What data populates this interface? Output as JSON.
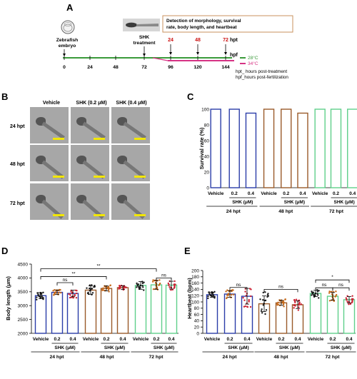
{
  "panelA": {
    "letter": "A",
    "embryo_label_1": "Zebrafish",
    "embryo_label_2": "embryo",
    "treatment_label_1": "SHK",
    "treatment_label_2": "treatment",
    "detection_box": "Detection of morphology, survival rate, body length, and heartbeat",
    "hpt_ticks": [
      "24",
      "48",
      "72"
    ],
    "hpt_unit": "hpt",
    "hpf_ticks": [
      "0",
      "24",
      "48",
      "72",
      "96",
      "120",
      "144"
    ],
    "hpf_unit": "hpf",
    "temp_green": "28°C",
    "temp_pink": "34°C",
    "note_hpt": "hpt_ hours post-treatment",
    "note_hpf": "hpf_hours post-fertilization",
    "colors": {
      "green_line": "#3a9a3a",
      "pink_line": "#d63384",
      "red_text": "#cc1111",
      "box": "#c8925c"
    }
  },
  "panelB": {
    "letter": "B",
    "columns": [
      "Vehicle",
      "SHK (0.2 μM)",
      "SHK (0.4 μM)"
    ],
    "rows": [
      "24 hpt",
      "48 hpt",
      "72 hpt"
    ]
  },
  "panelC": {
    "letter": "C",
    "groups": [
      "24 hpt",
      "48 hpt",
      "72 hpt"
    ],
    "conditions": [
      "Vehicle",
      "0.2",
      "0.4"
    ],
    "shk_label": "SHK (μM)",
    "colors": [
      "#2b3da8",
      "#9a5a2a",
      "#5fcf8a"
    ]
  },
  "panelD": {
    "letter": "D",
    "groups": [
      "24 hpt",
      "48 hpt",
      "72 hpt"
    ],
    "conditions": [
      "Vehicle",
      "0.2",
      "0.4"
    ],
    "shk_label": "SHK (μM)",
    "colors": [
      "#2b3da8",
      "#9a5a2a",
      "#5fcf8a"
    ],
    "sig_labels": [
      "ns",
      "**",
      "**",
      "ns"
    ]
  },
  "panelE": {
    "letter": "E",
    "groups": [
      "24 hpt",
      "48 hpt",
      "72 hpt"
    ],
    "conditions": [
      "Vehicle",
      "0.2",
      "0.4"
    ],
    "shk_label": "SHK (μM)",
    "colors": [
      "#2b3da8",
      "#9a5a2a",
      "#5fcf8a"
    ],
    "sig_labels": [
      "ns",
      "ns",
      "ns",
      "ns",
      "*"
    ]
  },
  "chart_data": [
    {
      "type": "bar",
      "title": "",
      "xlabel": "",
      "ylabel": "Survival rate (%)",
      "ylim": [
        0,
        100
      ],
      "yticks": [
        0,
        20,
        40,
        60,
        80,
        100
      ],
      "categories": [
        "Vehicle",
        "0.2",
        "0.4",
        "Vehicle",
        "0.2",
        "0.4",
        "Vehicle",
        "0.2",
        "0.4"
      ],
      "groups": [
        "24 hpt",
        "48 hpt",
        "72 hpt"
      ],
      "values": [
        100,
        100,
        95,
        100,
        100,
        95,
        100,
        100,
        100
      ]
    },
    {
      "type": "bar",
      "title": "",
      "xlabel": "",
      "ylabel": "Body length (μm)",
      "ylim": [
        2000,
        4500
      ],
      "yticks": [
        2000,
        2500,
        3000,
        3500,
        4000,
        4500
      ],
      "categories": [
        "Vehicle",
        "0.2",
        "0.4",
        "Vehicle",
        "0.2",
        "0.4",
        "Vehicle",
        "0.2",
        "0.4"
      ],
      "groups": [
        "24 hpt",
        "48 hpt",
        "72 hpt"
      ],
      "values": [
        3360,
        3480,
        3440,
        3560,
        3620,
        3650,
        3730,
        3750,
        3740
      ],
      "errors": [
        110,
        80,
        120,
        150,
        90,
        70,
        140,
        160,
        140
      ]
    },
    {
      "type": "bar",
      "title": "",
      "xlabel": "",
      "ylabel": "Heartbeat (bpm)",
      "ylim": [
        0,
        200
      ],
      "yticks": [
        0,
        20,
        40,
        60,
        80,
        100,
        120,
        140,
        160,
        180,
        200
      ],
      "categories": [
        "Vehicle",
        "0.2",
        "0.4",
        "Vehicle",
        "0.2",
        "0.4",
        "Vehicle",
        "0.2",
        "0.4"
      ],
      "groups": [
        "24 hpt",
        "48 hpt",
        "72 hpt"
      ],
      "values": [
        123,
        125,
        118,
        94,
        97,
        91,
        127,
        118,
        107
      ],
      "errors": [
        8,
        10,
        25,
        25,
        8,
        12,
        10,
        12,
        10
      ]
    }
  ]
}
